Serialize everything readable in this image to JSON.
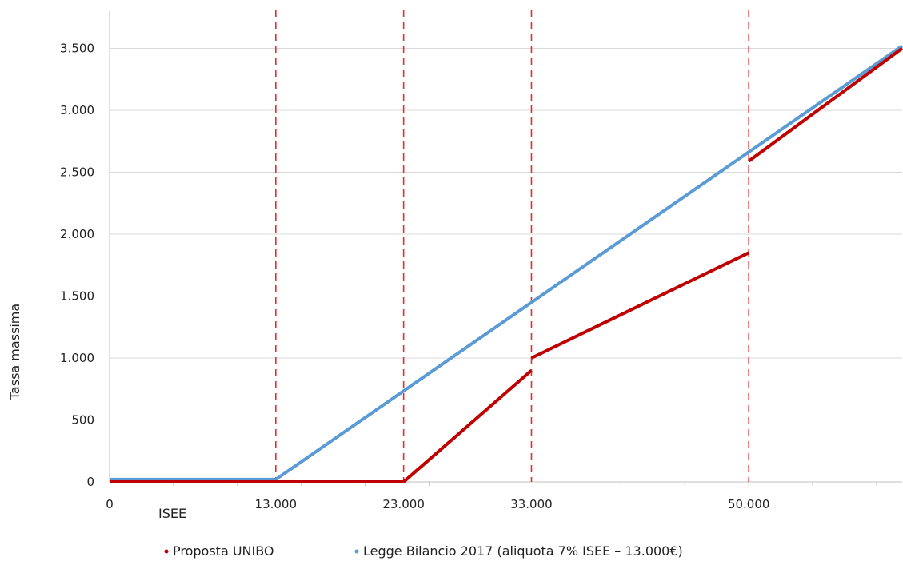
{
  "chart_data": {
    "type": "line",
    "title": "",
    "xlabel": "ISEE",
    "ylabel": "Tassa massima",
    "xlim": [
      0,
      62000
    ],
    "ylim": [
      0,
      3500
    ],
    "y_ticks": [
      0,
      500,
      1000,
      1500,
      2000,
      2500,
      3000,
      3500
    ],
    "y_tick_labels": [
      "0",
      "500",
      "1.000",
      "1.500",
      "2.000",
      "2.500",
      "3.000",
      "3.500"
    ],
    "x_tick_labels": [
      {
        "value": 0,
        "label": "0"
      },
      {
        "value": 13000,
        "label": "13.000"
      },
      {
        "value": 23000,
        "label": "23.000"
      },
      {
        "value": 33000,
        "label": "33.000"
      },
      {
        "value": 50000,
        "label": "50.000"
      }
    ],
    "vlines": [
      13000,
      23000,
      33000,
      50000
    ],
    "grid": true,
    "legend_position": "bottom",
    "series": [
      {
        "name": "Proposta UNIBO",
        "color": "#c00000",
        "segments": [
          [
            [
              0,
              0
            ],
            [
              13000,
              0
            ],
            [
              23000,
              0
            ],
            [
              33000,
              900
            ]
          ],
          [
            [
              33000,
              1000
            ],
            [
              50000,
              1850
            ]
          ],
          [
            [
              50000,
              2590
            ],
            [
              62000,
              3500
            ]
          ]
        ]
      },
      {
        "name": "Legge Bilancio 2017 (aliquota 7% ISEE – 13.000€)",
        "color": "#5b9bd5",
        "segments": [
          [
            [
              0,
              20
            ],
            [
              13000,
              20
            ],
            [
              62000,
              3520
            ]
          ]
        ]
      }
    ]
  }
}
